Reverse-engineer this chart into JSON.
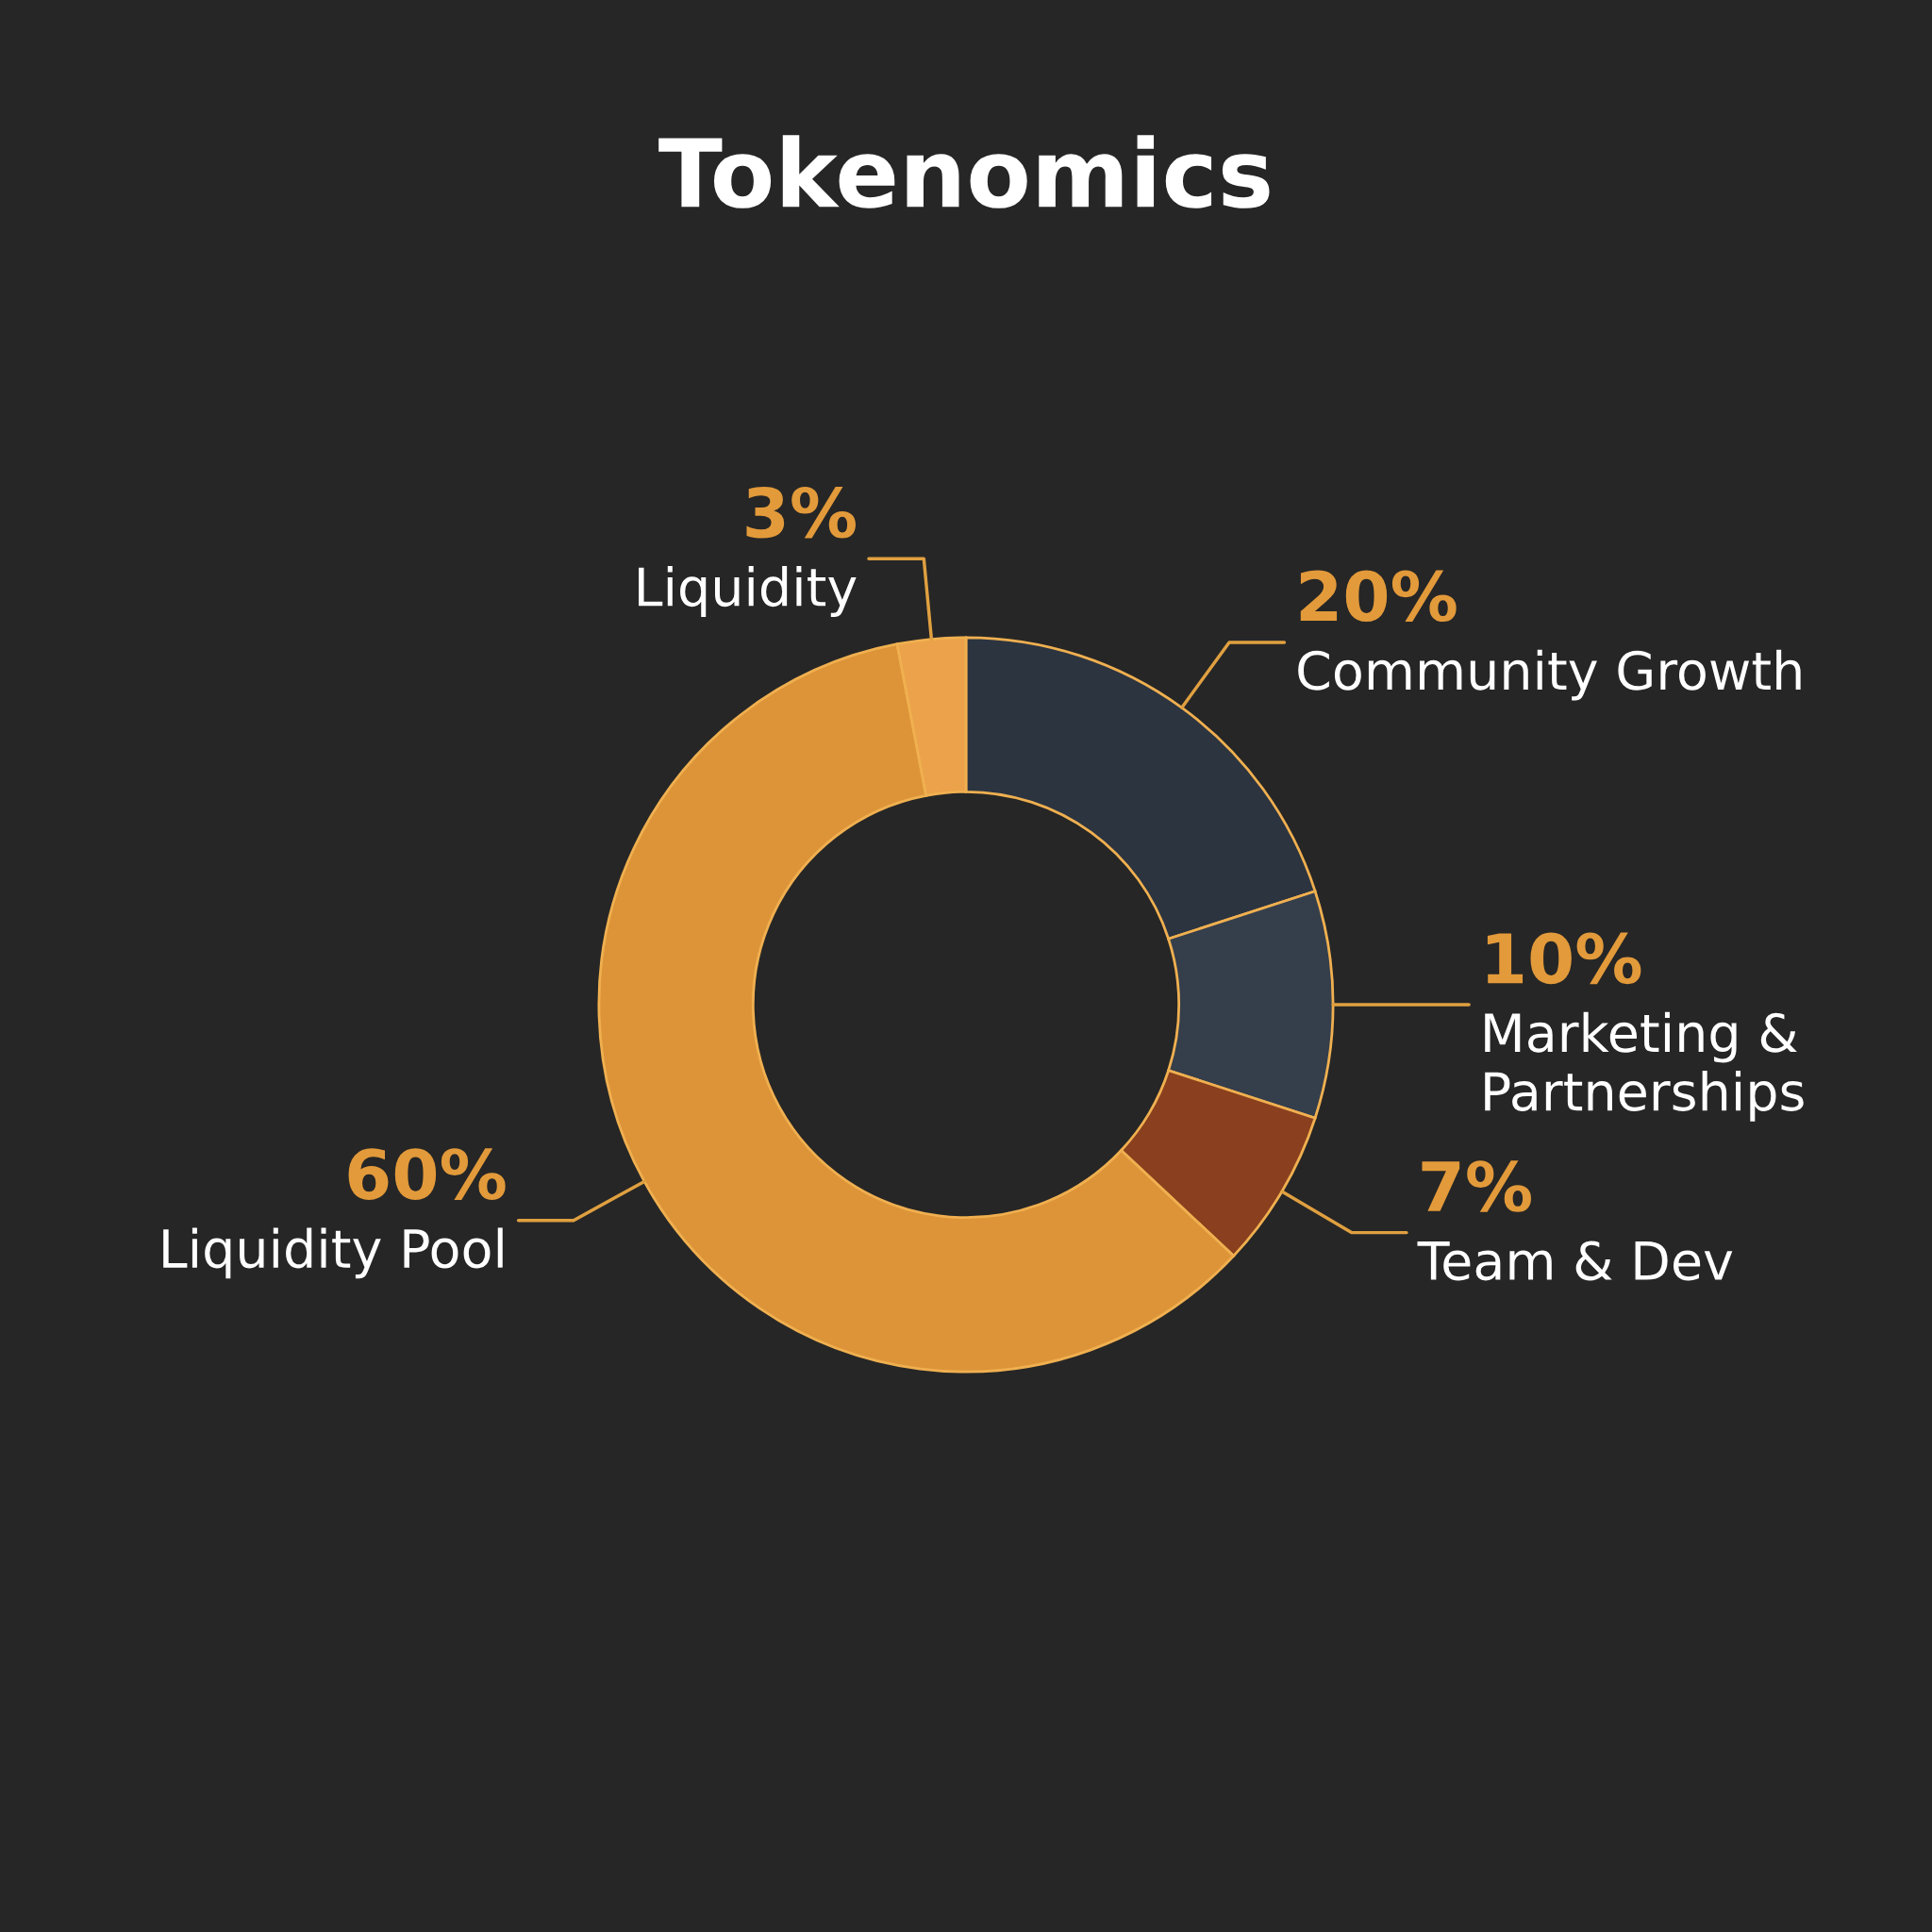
{
  "chart_data": {
    "type": "donut",
    "title": "Tokenomics",
    "categories": [
      "Community Growth",
      "Marketing &\nPartnerships",
      "Team & Dev",
      "Liquidity Pool",
      "Liquidity"
    ],
    "values": [
      20,
      10,
      7,
      60,
      3
    ],
    "value_labels": [
      "20%",
      "10%",
      "7%",
      "60%",
      "3%"
    ],
    "colors": [
      "#2c3440",
      "#353e4b",
      "#8a401e",
      "#dd9438",
      "#eba24a"
    ]
  }
}
